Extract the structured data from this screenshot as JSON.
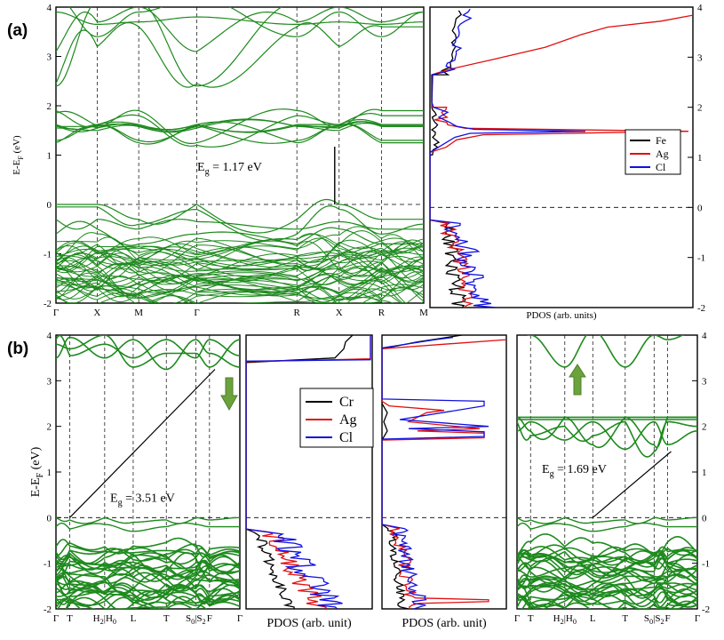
{
  "panel_labels": [
    "(a)",
    "(b)"
  ],
  "chart_data": [
    {
      "id": "a-bands",
      "type": "line",
      "ylabel": "E-E_F (eV)",
      "ylim": [
        -2,
        4
      ],
      "yticks": [
        "-2",
        "-1",
        "0",
        "1",
        "2",
        "3",
        "4"
      ],
      "kpoint_labels": [
        "Γ",
        "X",
        "M",
        "Γ",
        "R",
        "X",
        "R",
        "M"
      ],
      "annotation": "E_g = 1.17 eV",
      "gap_ev": 1.17,
      "fermi_level": 0,
      "series_color": "#1e8a1e"
    },
    {
      "id": "a-pdos",
      "type": "line",
      "xlabel": "PDOS (arb. units)",
      "ylim": [
        -2,
        4
      ],
      "yticks": [
        "-2",
        "-1",
        "0",
        "1",
        "2",
        "3",
        "4"
      ],
      "legend_position": "middle-right",
      "series": [
        {
          "name": "Fe",
          "color": "#000000"
        },
        {
          "name": "Ag",
          "color": "#e01010"
        },
        {
          "name": "Cl",
          "color": "#1010e0"
        }
      ]
    },
    {
      "id": "b-bands-down",
      "type": "line",
      "ylabel": "E-E_F (eV)",
      "ylim": [
        -2,
        4
      ],
      "yticks": [
        "-2",
        "-1",
        "0",
        "1",
        "2",
        "3",
        "4"
      ],
      "kpoint_labels": [
        "Γ",
        "T",
        "H2|H0",
        "L",
        "T",
        "S0|S2",
        "F",
        "Γ"
      ],
      "annotation": "E_g = 3.51 eV",
      "gap_ev": 3.51,
      "spin": "down",
      "series_color": "#1e8a1e"
    },
    {
      "id": "b-pdos-down",
      "type": "line",
      "xlabel": "PDOS (arb. unit)",
      "ylim": [
        -2,
        4
      ],
      "legend_position": "top-right",
      "series": [
        {
          "name": "Cr",
          "color": "#000000"
        },
        {
          "name": "Ag",
          "color": "#e01010"
        },
        {
          "name": "Cl",
          "color": "#1010e0"
        }
      ]
    },
    {
      "id": "b-pdos-up",
      "type": "line",
      "xlabel": "PDOS (arb. unit)",
      "ylim": [
        -2,
        4
      ]
    },
    {
      "id": "b-bands-up",
      "type": "line",
      "ylim": [
        -2,
        4
      ],
      "yticks": [
        "-2",
        "-1",
        "0",
        "1",
        "2",
        "3",
        "4"
      ],
      "kpoint_labels": [
        "Γ",
        "T",
        "H2|H0",
        "L",
        "T",
        "S0|S2",
        "F",
        "Γ"
      ],
      "annotation": "E_g = 1.69 eV",
      "gap_ev": 1.69,
      "spin": "up",
      "series_color": "#1e8a1e"
    }
  ]
}
